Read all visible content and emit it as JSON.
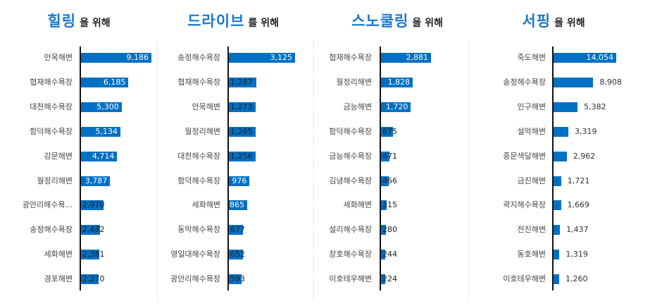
{
  "panels": [
    {
      "title_main": "힐링",
      "title_suffix": "을 위해"
    },
    {
      "title_main": "드라이브",
      "title_suffix": "를 위해"
    },
    {
      "title_main": "스노쿨링",
      "title_suffix": "을 위해"
    },
    {
      "title_main": "서핑",
      "title_suffix": "을 위해"
    }
  ],
  "colors": {
    "bar": "#0070c4",
    "title": "#1b78cc",
    "axis": "#111111"
  },
  "chart_data": [
    {
      "type": "bar",
      "orientation": "horizontal",
      "title": "힐링 을 위해",
      "categories": [
        "안목해변",
        "협재해수욕장",
        "대천해수욕장",
        "함덕해수욕장",
        "강문해변",
        "월정리해변",
        "광안리해수욕...",
        "송정해수욕장",
        "세화해변",
        "경포해변"
      ],
      "values": [
        9186,
        6185,
        5300,
        5134,
        4714,
        3787,
        2970,
        2482,
        2381,
        2270
      ],
      "labels": [
        "9,186",
        "6,185",
        "5,300",
        "5,134",
        "4,714",
        "3,787",
        "2,970",
        "2,482",
        "2,381",
        "2,270"
      ],
      "xlabel": "",
      "ylabel": "",
      "grid": false,
      "legend": null
    },
    {
      "type": "bar",
      "orientation": "horizontal",
      "title": "드라이브 를 위해",
      "categories": [
        "송정해수욕장",
        "협재해수욕장",
        "안목해변",
        "월정리해변",
        "대천해수욕장",
        "함덕해수욕장",
        "세화해변",
        "동막해수욕장",
        "영일대해수욕장",
        "광안리해수욕장"
      ],
      "values": [
        3125,
        1287,
        1273,
        1265,
        1256,
        976,
        865,
        677,
        652,
        593
      ],
      "labels": [
        "3,125",
        "1,287",
        "1,273",
        "1,265",
        "1,256",
        "976",
        "865",
        "677",
        "652",
        "593"
      ],
      "xlabel": "",
      "ylabel": "",
      "grid": false,
      "legend": null
    },
    {
      "type": "bar",
      "orientation": "horizontal",
      "title": "스노쿨링 을 위해",
      "categories": [
        "협재해수욕장",
        "월정리해변",
        "금능해변",
        "함덕해수욕장",
        "금능해수욕장",
        "김녕해수욕장",
        "세화해변",
        "설리해수욕장",
        "장호해수욕장",
        "이호테우해변"
      ],
      "values": [
        2881,
        1828,
        1720,
        675,
        471,
        466,
        315,
        280,
        244,
        224
      ],
      "labels": [
        "2,881",
        "1,828",
        "1,720",
        "675",
        "471",
        "466",
        "315",
        "280",
        "244",
        "224"
      ],
      "xlabel": "",
      "ylabel": "",
      "grid": false,
      "legend": null
    },
    {
      "type": "bar",
      "orientation": "horizontal",
      "title": "서핑 을 위해",
      "categories": [
        "죽도해변",
        "송정해수욕장",
        "인구해변",
        "설악해변",
        "중문색달해변",
        "금진해변",
        "곽지해수욕장",
        "전진해변",
        "동호해변",
        "이호테우해변"
      ],
      "values": [
        14054,
        8908,
        5382,
        3319,
        2962,
        1721,
        1669,
        1437,
        1319,
        1260
      ],
      "labels": [
        "14,054",
        "8,908",
        "5,382",
        "3,319",
        "2,962",
        "1,721",
        "1,669",
        "1,437",
        "1,319",
        "1,260"
      ],
      "xlabel": "",
      "ylabel": "",
      "grid": false,
      "legend": null
    }
  ]
}
